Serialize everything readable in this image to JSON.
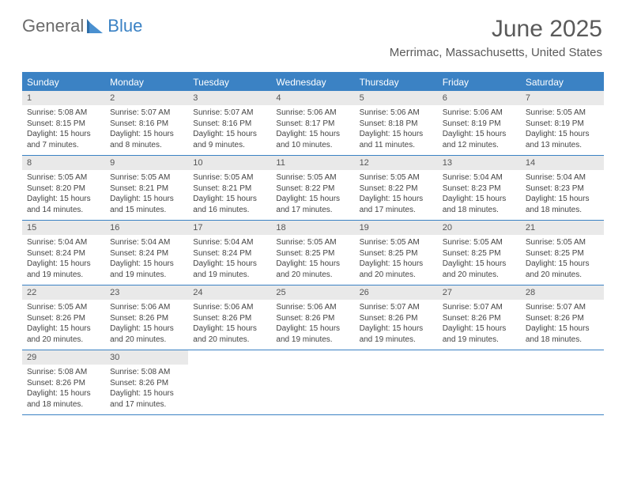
{
  "logo": {
    "word1": "General",
    "word2": "Blue"
  },
  "title": "June 2025",
  "location": "Merrimac, Massachusetts, United States",
  "colors": {
    "accent": "#3b82c4",
    "dow_bg": "#3b82c4",
    "dow_text": "#ffffff",
    "daynum_bg": "#e9e9e9",
    "text": "#444444",
    "title_text": "#5a5a5a"
  },
  "fonts": {
    "title_size_pt": 22,
    "location_size_pt": 11,
    "dow_size_pt": 9,
    "daynum_size_pt": 8,
    "body_size_pt": 7.5
  },
  "dow": [
    "Sunday",
    "Monday",
    "Tuesday",
    "Wednesday",
    "Thursday",
    "Friday",
    "Saturday"
  ],
  "weeks": [
    [
      {
        "n": "1",
        "sr": "Sunrise: 5:08 AM",
        "ss": "Sunset: 8:15 PM",
        "dl": "Daylight: 15 hours and 7 minutes."
      },
      {
        "n": "2",
        "sr": "Sunrise: 5:07 AM",
        "ss": "Sunset: 8:16 PM",
        "dl": "Daylight: 15 hours and 8 minutes."
      },
      {
        "n": "3",
        "sr": "Sunrise: 5:07 AM",
        "ss": "Sunset: 8:16 PM",
        "dl": "Daylight: 15 hours and 9 minutes."
      },
      {
        "n": "4",
        "sr": "Sunrise: 5:06 AM",
        "ss": "Sunset: 8:17 PM",
        "dl": "Daylight: 15 hours and 10 minutes."
      },
      {
        "n": "5",
        "sr": "Sunrise: 5:06 AM",
        "ss": "Sunset: 8:18 PM",
        "dl": "Daylight: 15 hours and 11 minutes."
      },
      {
        "n": "6",
        "sr": "Sunrise: 5:06 AM",
        "ss": "Sunset: 8:19 PM",
        "dl": "Daylight: 15 hours and 12 minutes."
      },
      {
        "n": "7",
        "sr": "Sunrise: 5:05 AM",
        "ss": "Sunset: 8:19 PM",
        "dl": "Daylight: 15 hours and 13 minutes."
      }
    ],
    [
      {
        "n": "8",
        "sr": "Sunrise: 5:05 AM",
        "ss": "Sunset: 8:20 PM",
        "dl": "Daylight: 15 hours and 14 minutes."
      },
      {
        "n": "9",
        "sr": "Sunrise: 5:05 AM",
        "ss": "Sunset: 8:21 PM",
        "dl": "Daylight: 15 hours and 15 minutes."
      },
      {
        "n": "10",
        "sr": "Sunrise: 5:05 AM",
        "ss": "Sunset: 8:21 PM",
        "dl": "Daylight: 15 hours and 16 minutes."
      },
      {
        "n": "11",
        "sr": "Sunrise: 5:05 AM",
        "ss": "Sunset: 8:22 PM",
        "dl": "Daylight: 15 hours and 17 minutes."
      },
      {
        "n": "12",
        "sr": "Sunrise: 5:05 AM",
        "ss": "Sunset: 8:22 PM",
        "dl": "Daylight: 15 hours and 17 minutes."
      },
      {
        "n": "13",
        "sr": "Sunrise: 5:04 AM",
        "ss": "Sunset: 8:23 PM",
        "dl": "Daylight: 15 hours and 18 minutes."
      },
      {
        "n": "14",
        "sr": "Sunrise: 5:04 AM",
        "ss": "Sunset: 8:23 PM",
        "dl": "Daylight: 15 hours and 18 minutes."
      }
    ],
    [
      {
        "n": "15",
        "sr": "Sunrise: 5:04 AM",
        "ss": "Sunset: 8:24 PM",
        "dl": "Daylight: 15 hours and 19 minutes."
      },
      {
        "n": "16",
        "sr": "Sunrise: 5:04 AM",
        "ss": "Sunset: 8:24 PM",
        "dl": "Daylight: 15 hours and 19 minutes."
      },
      {
        "n": "17",
        "sr": "Sunrise: 5:04 AM",
        "ss": "Sunset: 8:24 PM",
        "dl": "Daylight: 15 hours and 19 minutes."
      },
      {
        "n": "18",
        "sr": "Sunrise: 5:05 AM",
        "ss": "Sunset: 8:25 PM",
        "dl": "Daylight: 15 hours and 20 minutes."
      },
      {
        "n": "19",
        "sr": "Sunrise: 5:05 AM",
        "ss": "Sunset: 8:25 PM",
        "dl": "Daylight: 15 hours and 20 minutes."
      },
      {
        "n": "20",
        "sr": "Sunrise: 5:05 AM",
        "ss": "Sunset: 8:25 PM",
        "dl": "Daylight: 15 hours and 20 minutes."
      },
      {
        "n": "21",
        "sr": "Sunrise: 5:05 AM",
        "ss": "Sunset: 8:25 PM",
        "dl": "Daylight: 15 hours and 20 minutes."
      }
    ],
    [
      {
        "n": "22",
        "sr": "Sunrise: 5:05 AM",
        "ss": "Sunset: 8:26 PM",
        "dl": "Daylight: 15 hours and 20 minutes."
      },
      {
        "n": "23",
        "sr": "Sunrise: 5:06 AM",
        "ss": "Sunset: 8:26 PM",
        "dl": "Daylight: 15 hours and 20 minutes."
      },
      {
        "n": "24",
        "sr": "Sunrise: 5:06 AM",
        "ss": "Sunset: 8:26 PM",
        "dl": "Daylight: 15 hours and 20 minutes."
      },
      {
        "n": "25",
        "sr": "Sunrise: 5:06 AM",
        "ss": "Sunset: 8:26 PM",
        "dl": "Daylight: 15 hours and 19 minutes."
      },
      {
        "n": "26",
        "sr": "Sunrise: 5:07 AM",
        "ss": "Sunset: 8:26 PM",
        "dl": "Daylight: 15 hours and 19 minutes."
      },
      {
        "n": "27",
        "sr": "Sunrise: 5:07 AM",
        "ss": "Sunset: 8:26 PM",
        "dl": "Daylight: 15 hours and 19 minutes."
      },
      {
        "n": "28",
        "sr": "Sunrise: 5:07 AM",
        "ss": "Sunset: 8:26 PM",
        "dl": "Daylight: 15 hours and 18 minutes."
      }
    ],
    [
      {
        "n": "29",
        "sr": "Sunrise: 5:08 AM",
        "ss": "Sunset: 8:26 PM",
        "dl": "Daylight: 15 hours and 18 minutes."
      },
      {
        "n": "30",
        "sr": "Sunrise: 5:08 AM",
        "ss": "Sunset: 8:26 PM",
        "dl": "Daylight: 15 hours and 17 minutes."
      },
      null,
      null,
      null,
      null,
      null
    ]
  ]
}
